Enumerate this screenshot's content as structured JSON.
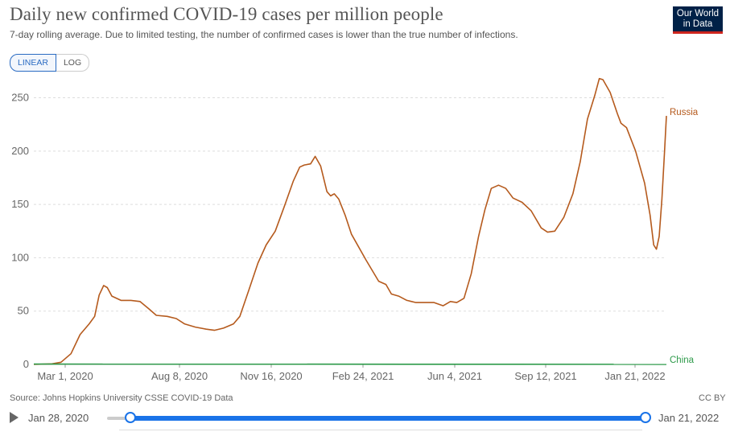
{
  "header": {
    "title": "Daily new confirmed COVID-19 cases per million people",
    "subtitle": "7-day rolling average. Due to limited testing, the number of confirmed cases is lower than the true number of infections.",
    "logo_line1": "Our World",
    "logo_line2": "in Data"
  },
  "scale_toggle": {
    "linear_label": "LINEAR",
    "log_label": "LOG",
    "selected": "LINEAR"
  },
  "footer": {
    "source": "Source: Johns Hopkins University CSSE COVID-19 Data",
    "license": "CC BY"
  },
  "timeline": {
    "start_date": "Jan 28, 2020",
    "end_date": "Jan 21, 2022"
  },
  "colors": {
    "russia": "#b55a1d",
    "china": "#2e9a4a",
    "accent": "#1a73e8",
    "grid": "#dddddd",
    "logo_bg": "#002147",
    "logo_accent": "#ce261e"
  },
  "chart_data": {
    "type": "line",
    "title": "Daily new confirmed COVID-19 cases per million people",
    "subtitle": "7-day rolling average. Due to limited testing, the number of confirmed cases is lower than the true number of infections.",
    "x_tick_labels": [
      "Mar 1, 2020",
      "Aug 8, 2020",
      "Nov 16, 2020",
      "Feb 24, 2021",
      "Jun 4, 2021",
      "Sep 12, 2021",
      "Jan 21, 2022"
    ],
    "y_tick_labels": [
      "0",
      "50",
      "100",
      "150",
      "200",
      "250"
    ],
    "ylim": [
      0,
      270
    ],
    "xlim": [
      "2020-02-24",
      "2022-01-21"
    ],
    "grid": true,
    "series": [
      {
        "name": "Russia",
        "color": "#b55a1d",
        "points": [
          [
            "2020-02-24",
            0
          ],
          [
            "2020-03-15",
            0.5
          ],
          [
            "2020-03-25",
            2
          ],
          [
            "2020-04-05",
            10
          ],
          [
            "2020-04-15",
            28
          ],
          [
            "2020-04-25",
            38
          ],
          [
            "2020-05-01",
            45
          ],
          [
            "2020-05-06",
            65
          ],
          [
            "2020-05-11",
            74
          ],
          [
            "2020-05-15",
            72
          ],
          [
            "2020-05-20",
            64
          ],
          [
            "2020-05-30",
            60
          ],
          [
            "2020-06-10",
            60
          ],
          [
            "2020-06-20",
            59
          ],
          [
            "2020-06-30",
            52
          ],
          [
            "2020-07-08",
            46
          ],
          [
            "2020-07-20",
            45
          ],
          [
            "2020-07-30",
            43
          ],
          [
            "2020-08-08",
            38
          ],
          [
            "2020-08-20",
            35
          ],
          [
            "2020-09-01",
            33
          ],
          [
            "2020-09-10",
            32
          ],
          [
            "2020-09-20",
            34
          ],
          [
            "2020-10-01",
            38
          ],
          [
            "2020-10-08",
            45
          ],
          [
            "2020-10-18",
            70
          ],
          [
            "2020-10-28",
            95
          ],
          [
            "2020-11-06",
            112
          ],
          [
            "2020-11-16",
            125
          ],
          [
            "2020-11-26",
            148
          ],
          [
            "2020-12-06",
            172
          ],
          [
            "2020-12-13",
            185
          ],
          [
            "2020-12-18",
            187
          ],
          [
            "2020-12-25",
            188
          ],
          [
            "2020-12-30",
            195
          ],
          [
            "2021-01-05",
            186
          ],
          [
            "2021-01-12",
            162
          ],
          [
            "2021-01-16",
            158
          ],
          [
            "2021-01-20",
            160
          ],
          [
            "2021-01-25",
            155
          ],
          [
            "2021-02-01",
            140
          ],
          [
            "2021-02-08",
            122
          ],
          [
            "2021-02-24",
            98
          ],
          [
            "2021-03-10",
            78
          ],
          [
            "2021-03-18",
            75
          ],
          [
            "2021-03-24",
            66
          ],
          [
            "2021-04-01",
            64
          ],
          [
            "2021-04-10",
            60
          ],
          [
            "2021-04-20",
            58
          ],
          [
            "2021-05-01",
            58
          ],
          [
            "2021-05-10",
            58
          ],
          [
            "2021-05-20",
            55
          ],
          [
            "2021-05-28",
            59
          ],
          [
            "2021-06-04",
            58
          ],
          [
            "2021-06-12",
            62
          ],
          [
            "2021-06-20",
            85
          ],
          [
            "2021-06-28",
            120
          ],
          [
            "2021-07-05",
            145
          ],
          [
            "2021-07-12",
            165
          ],
          [
            "2021-07-20",
            168
          ],
          [
            "2021-07-28",
            165
          ],
          [
            "2021-08-05",
            156
          ],
          [
            "2021-08-15",
            152
          ],
          [
            "2021-08-25",
            144
          ],
          [
            "2021-09-05",
            128
          ],
          [
            "2021-09-12",
            124
          ],
          [
            "2021-09-20",
            125
          ],
          [
            "2021-09-30",
            138
          ],
          [
            "2021-10-10",
            160
          ],
          [
            "2021-10-18",
            190
          ],
          [
            "2021-10-26",
            230
          ],
          [
            "2021-11-03",
            252
          ],
          [
            "2021-11-08",
            268
          ],
          [
            "2021-11-12",
            267
          ],
          [
            "2021-11-20",
            255
          ],
          [
            "2021-11-28",
            235
          ],
          [
            "2021-12-02",
            226
          ],
          [
            "2021-12-08",
            222
          ],
          [
            "2021-12-18",
            200
          ],
          [
            "2021-12-28",
            170
          ],
          [
            "2022-01-03",
            140
          ],
          [
            "2022-01-07",
            112
          ],
          [
            "2022-01-10",
            108
          ],
          [
            "2022-01-13",
            120
          ],
          [
            "2022-01-16",
            155
          ],
          [
            "2022-01-19",
            200
          ],
          [
            "2022-01-21",
            233
          ]
        ]
      },
      {
        "name": "China",
        "color": "#2e9a4a",
        "points": [
          [
            "2020-02-24",
            0.3
          ],
          [
            "2022-01-21",
            0.1
          ]
        ]
      }
    ]
  }
}
